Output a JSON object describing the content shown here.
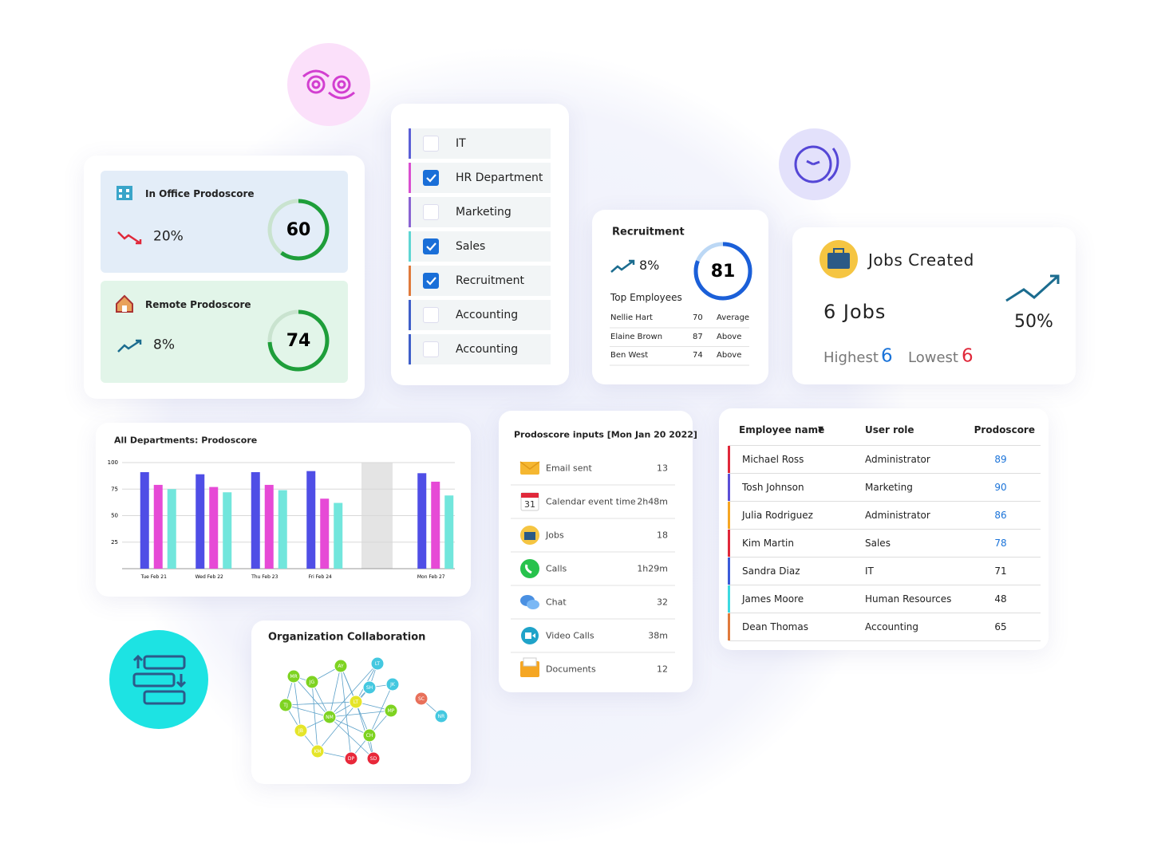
{
  "office": {
    "title": "In Office Prodoscore",
    "change": "20%",
    "score": 60
  },
  "remote": {
    "title": "Remote Prodoscore",
    "change": "8%",
    "score": 74
  },
  "departments": [
    {
      "name": "IT",
      "checked": false,
      "color": "#5b5fd6"
    },
    {
      "name": "HR Department",
      "checked": true,
      "color": "#d94fd0"
    },
    {
      "name": "Marketing",
      "checked": false,
      "color": "#8a63d2"
    },
    {
      "name": "Sales",
      "checked": true,
      "color": "#5fd6d3"
    },
    {
      "name": "Recruitment",
      "checked": true,
      "color": "#e07a3c"
    },
    {
      "name": "Accounting",
      "checked": false,
      "color": "#3f5fc9"
    },
    {
      "name": "Accounting",
      "checked": false,
      "color": "#3f5fc9"
    }
  ],
  "recruitment": {
    "title": "Recruitment",
    "change": "8%",
    "score": 81,
    "top_label": "Top Employees",
    "employees": [
      {
        "name": "Nellie Hart",
        "score": 70,
        "level": "Average"
      },
      {
        "name": "Elaine Brown",
        "score": 87,
        "level": "Above"
      },
      {
        "name": "Ben West",
        "score": 74,
        "level": "Above"
      }
    ]
  },
  "jobs": {
    "title": "Jobs Created",
    "count": "6 Jobs",
    "change": "50%",
    "highest_label": "Highest",
    "highest": 6,
    "lowest_label": "Lowest",
    "lowest": 6
  },
  "chart_data": {
    "type": "bar",
    "title": "All Departments: Prodoscore",
    "categories": [
      "Tue Feb 21",
      "Wed Feb 22",
      "Thu Feb 23",
      "Fri Feb 24",
      null,
      "Mon Feb 27"
    ],
    "series": [
      {
        "color": "#4f4ee6",
        "values": [
          91,
          89,
          91,
          92,
          null,
          90
        ]
      },
      {
        "color": "#e64ad6",
        "values": [
          79,
          77,
          79,
          66,
          null,
          82
        ]
      },
      {
        "color": "#72e6dc",
        "values": [
          75,
          72,
          74,
          62,
          null,
          69
        ]
      }
    ],
    "ylim": [
      0,
      100
    ],
    "yticks": [
      25,
      50,
      75,
      100
    ],
    "grid": true
  },
  "inputs": {
    "title": "Prodoscore inputs [Mon Jan 20 2022]",
    "rows": [
      {
        "label": "Email sent",
        "value": 13
      },
      {
        "label": "Calendar event time",
        "value": "2h48m"
      },
      {
        "label": "Jobs",
        "value": 18
      },
      {
        "label": "Calls",
        "value": "1h29m"
      },
      {
        "label": "Chat",
        "value": 32
      },
      {
        "label": "Video Calls",
        "value": "38m"
      },
      {
        "label": "Documents",
        "value": 12
      }
    ]
  },
  "employees": {
    "headers": [
      "Employee name",
      "User role",
      "Prodoscore"
    ],
    "rows": [
      {
        "name": "Michael Ross",
        "role": "Administrator",
        "score": 89,
        "color": "#e0283a",
        "score_color": "#1a73d9"
      },
      {
        "name": "Tosh Johnson",
        "role": "Marketing",
        "score": 90,
        "color": "#5b4fd6",
        "score_color": "#1a73d9"
      },
      {
        "name": "Julia Rodriguez",
        "role": "Administrator",
        "score": 86,
        "color": "#f5a623",
        "score_color": "#1a73d9"
      },
      {
        "name": "Kim Martin",
        "role": "Sales",
        "score": 78,
        "color": "#e0283a",
        "score_color": "#1a73d9"
      },
      {
        "name": "Sandra Diaz",
        "role": "IT",
        "score": 71,
        "color": "#3a5bd9",
        "score_color": "#222222"
      },
      {
        "name": "James Moore",
        "role": "Human Resources",
        "score": 48,
        "color": "#3dd9e0",
        "score_color": "#222222"
      },
      {
        "name": "Dean Thomas",
        "role": "Accounting",
        "score": 65,
        "color": "#e07a3c",
        "score_color": "#222222"
      }
    ]
  },
  "collaboration": {
    "title": "Organization Collaboration",
    "nodes": [
      {
        "label": "MR",
        "color": "#7ed321"
      },
      {
        "label": "JG",
        "color": "#7ed321"
      },
      {
        "label": "AY",
        "color": "#7ed321"
      },
      {
        "label": "LT",
        "color": "#44c8e0"
      },
      {
        "label": "SH",
        "color": "#44c8e0"
      },
      {
        "label": "JK",
        "color": "#44c8e0"
      },
      {
        "label": "TJ",
        "color": "#7ed321"
      },
      {
        "label": "LT",
        "color": "#e5e52a"
      },
      {
        "label": "MP",
        "color": "#7ed321"
      },
      {
        "label": "JB",
        "color": "#e5e52a"
      },
      {
        "label": "NM",
        "color": "#7ed321"
      },
      {
        "label": "CH",
        "color": "#7ed321"
      },
      {
        "label": "KM",
        "color": "#e5e52a"
      },
      {
        "label": "DP",
        "color": "#e8283a"
      },
      {
        "label": "SD",
        "color": "#e8283a"
      },
      {
        "label": "SC",
        "color": "#e8705a"
      },
      {
        "label": "NR",
        "color": "#44c8e0"
      }
    ]
  }
}
